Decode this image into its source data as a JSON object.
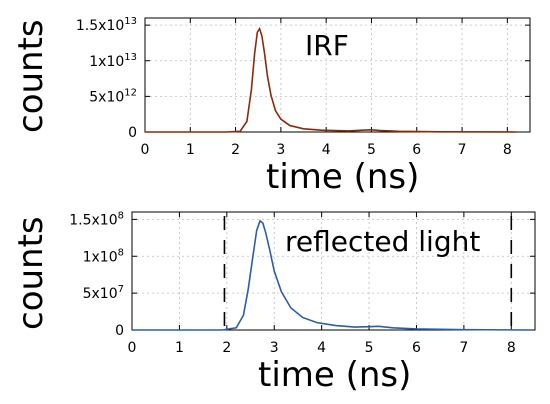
{
  "chart_data": [
    {
      "type": "line",
      "annotation": "IRF",
      "xlabel": "time (ns)",
      "ylabel": "counts",
      "xlim": [
        0,
        8.5
      ],
      "ylim": [
        0,
        16000000000000.0
      ],
      "x_ticks": [
        "0",
        "1",
        "2",
        "3",
        "4",
        "5",
        "6",
        "7",
        "8"
      ],
      "y_ticks": [
        {
          "value": 0,
          "label": "0"
        },
        {
          "value": 5000000000000.0,
          "label": "5x10",
          "exp": "12"
        },
        {
          "value": 10000000000000.0,
          "label": "1x10",
          "exp": "13"
        },
        {
          "value": 15000000000000.0,
          "label": "1.5x10",
          "exp": "13"
        }
      ],
      "grid": true,
      "color": "#8b2a0a",
      "series": [
        {
          "x": [
            0,
            1.8,
            2.1,
            2.25,
            2.35,
            2.42,
            2.48,
            2.53,
            2.58,
            2.64,
            2.7,
            2.78,
            2.88,
            3.0,
            3.2,
            3.5,
            3.9,
            4.5,
            4.8,
            5.0,
            5.2,
            5.6,
            6.5,
            8.2
          ],
          "values": [
            0,
            0,
            100000000000.0,
            1500000000000.0,
            6000000000000.0,
            11000000000000.0,
            14000000000000.0,
            14500000000000.0,
            13500000000000.0,
            11000000000000.0,
            8000000000000.0,
            5200000000000.0,
            3000000000000.0,
            1800000000000.0,
            900000000000.0,
            450000000000.0,
            250000000000.0,
            150000000000.0,
            250000000000.0,
            300000000000.0,
            200000000000.0,
            100000000000.0,
            30000000000.0,
            0
          ]
        }
      ]
    },
    {
      "type": "line",
      "annotation": "reflected light",
      "xlabel": "time (ns)",
      "ylabel": "counts",
      "xlim": [
        0,
        8.5
      ],
      "ylim": [
        0,
        160000000.0
      ],
      "x_ticks": [
        "0",
        "1",
        "2",
        "3",
        "4",
        "5",
        "6",
        "7",
        "8"
      ],
      "y_ticks": [
        {
          "value": 0,
          "label": "0"
        },
        {
          "value": 50000000.0,
          "label": "5x10",
          "exp": "7"
        },
        {
          "value": 100000000.0,
          "label": "1x10",
          "exp": "8"
        },
        {
          "value": 150000000.0,
          "label": "1.5x10",
          "exp": "8"
        }
      ],
      "grid": true,
      "color": "#2a5ea8",
      "markers": [
        1.95,
        8.0
      ],
      "series": [
        {
          "x": [
            0,
            1.9,
            2.2,
            2.35,
            2.45,
            2.55,
            2.63,
            2.7,
            2.76,
            2.82,
            2.9,
            3.0,
            3.15,
            3.35,
            3.6,
            3.9,
            4.3,
            4.7,
            5.0,
            5.2,
            5.5,
            6.0,
            7.0,
            8.4
          ],
          "values": [
            0,
            0,
            3000000.0,
            20000000.0,
            55000000.0,
            100000000.0,
            135000000.0,
            148000000.0,
            145000000.0,
            132000000.0,
            110000000.0,
            80000000.0,
            52000000.0,
            30000000.0,
            17000000.0,
            10000000.0,
            6000000.0,
            4000000.0,
            4500000.0,
            5000000.0,
            3000000.0,
            1500000.0,
            500000.0,
            0
          ]
        }
      ]
    }
  ]
}
